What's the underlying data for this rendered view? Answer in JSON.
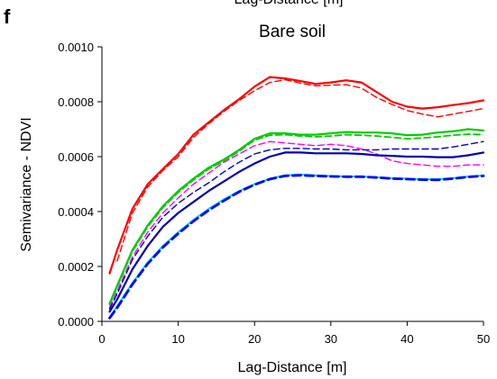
{
  "panel_label": "f",
  "top_cut_label": "Lag-Distance [m]",
  "chart_data": {
    "type": "line",
    "title": "Bare soil",
    "xlabel": "Lag-Distance [m]",
    "ylabel": "Semivariance - NDVI",
    "xlim": [
      0,
      50
    ],
    "ylim": [
      0,
      0.001
    ],
    "xticks": [
      0,
      10,
      20,
      30,
      40,
      50
    ],
    "yticks": [
      "0.0000",
      "0.0002",
      "0.0004",
      "0.0006",
      "0.0008",
      "0.0010"
    ],
    "grid": false,
    "legend": "none",
    "series": [
      {
        "color": "#ff0000",
        "style": "solid",
        "width": 2.2,
        "x": [
          1,
          2,
          4,
          6,
          8,
          10,
          12,
          14,
          16,
          18,
          20,
          22,
          24,
          26,
          28,
          30,
          32,
          34,
          36,
          38,
          40,
          42,
          44,
          46,
          48,
          50
        ],
        "y": [
          0.000175,
          0.00026,
          0.00041,
          0.0005,
          0.000555,
          0.00061,
          0.00068,
          0.000725,
          0.00077,
          0.00081,
          0.000855,
          0.00089,
          0.000885,
          0.000875,
          0.000865,
          0.00087,
          0.000878,
          0.00087,
          0.000835,
          0.0008,
          0.000782,
          0.000775,
          0.00078,
          0.000788,
          0.000795,
          0.000805
        ]
      },
      {
        "color": "#ff0000",
        "style": "dashed",
        "width": 1.4,
        "x": [
          2,
          4,
          6,
          8,
          10,
          12,
          14,
          16,
          18,
          20,
          22,
          24,
          26,
          28,
          30,
          32,
          34,
          36,
          38,
          40,
          42,
          44,
          46,
          48,
          50
        ],
        "y": [
          0.00022,
          0.000395,
          0.00049,
          0.00055,
          0.0006,
          0.00067,
          0.00072,
          0.000765,
          0.000805,
          0.00084,
          0.00087,
          0.00088,
          0.000868,
          0.000858,
          0.00086,
          0.000862,
          0.00085,
          0.000815,
          0.00079,
          0.000768,
          0.000755,
          0.000745,
          0.000755,
          0.000765,
          0.000775
        ]
      },
      {
        "color": "#00cc00",
        "style": "solid",
        "width": 2.2,
        "x": [
          1,
          2,
          4,
          6,
          8,
          10,
          12,
          14,
          16,
          18,
          20,
          22,
          24,
          26,
          28,
          30,
          32,
          34,
          36,
          38,
          40,
          42,
          44,
          46,
          48,
          50
        ],
        "y": [
          6.5e-05,
          0.00013,
          0.00026,
          0.00035,
          0.00042,
          0.000475,
          0.00052,
          0.00056,
          0.00059,
          0.000625,
          0.000665,
          0.000685,
          0.000685,
          0.00068,
          0.00068,
          0.000685,
          0.00069,
          0.000688,
          0.000688,
          0.000685,
          0.000678,
          0.00068,
          0.000688,
          0.000692,
          0.0007,
          0.000695
        ]
      },
      {
        "color": "#00cc00",
        "style": "dashed",
        "width": 1.8,
        "x": [
          1,
          2,
          4,
          6,
          8,
          10,
          12,
          14,
          16,
          18,
          20,
          22,
          24,
          26,
          28,
          30,
          32,
          34,
          36,
          38,
          40,
          42,
          44,
          46,
          48,
          50
        ],
        "y": [
          6e-05,
          0.000125,
          0.000255,
          0.000345,
          0.000415,
          0.00047,
          0.000515,
          0.000555,
          0.000585,
          0.00062,
          0.00066,
          0.000678,
          0.00068,
          0.000675,
          0.000672,
          0.000675,
          0.00068,
          0.000678,
          0.000675,
          0.00067,
          0.000665,
          0.000668,
          0.000672,
          0.000678,
          0.000682,
          0.00068
        ]
      },
      {
        "color": "#ff00ff",
        "style": "dashed",
        "width": 1.4,
        "x": [
          1,
          2,
          4,
          6,
          8,
          10,
          12,
          14,
          16,
          18,
          20,
          22,
          24,
          26,
          28,
          30,
          32,
          34,
          36,
          38,
          40,
          42,
          44,
          46,
          48,
          50
        ],
        "y": [
          5e-05,
          0.00011,
          0.000235,
          0.000325,
          0.000395,
          0.00045,
          0.0005,
          0.00054,
          0.00058,
          0.00061,
          0.00064,
          0.000655,
          0.00065,
          0.000645,
          0.00064,
          0.000645,
          0.00064,
          0.000628,
          0.00061,
          0.000585,
          0.000575,
          0.00057,
          0.000565,
          0.000565,
          0.00057,
          0.00057
        ]
      },
      {
        "color": "#0000cc",
        "style": "dashed",
        "width": 1.4,
        "x": [
          1,
          2,
          4,
          6,
          8,
          10,
          12,
          14,
          16,
          18,
          20,
          22,
          24,
          26,
          28,
          30,
          32,
          34,
          36,
          38,
          40,
          42,
          44,
          46,
          48,
          50
        ],
        "y": [
          4.5e-05,
          0.0001,
          0.000225,
          0.00031,
          0.00038,
          0.00043,
          0.00047,
          0.000505,
          0.000545,
          0.00058,
          0.00061,
          0.000625,
          0.00063,
          0.00063,
          0.000628,
          0.000628,
          0.000625,
          0.000625,
          0.000625,
          0.000628,
          0.000628,
          0.000628,
          0.000628,
          0.000635,
          0.000645,
          0.000655
        ]
      },
      {
        "color": "#0000aa",
        "style": "solid",
        "width": 2.2,
        "x": [
          1,
          2,
          4,
          6,
          8,
          10,
          12,
          14,
          16,
          18,
          20,
          22,
          24,
          26,
          28,
          30,
          32,
          34,
          36,
          38,
          40,
          42,
          44,
          46,
          48,
          50
        ],
        "y": [
          3.5e-05,
          8e-05,
          0.00019,
          0.000275,
          0.000345,
          0.000395,
          0.000435,
          0.000475,
          0.00051,
          0.000545,
          0.000575,
          0.0006,
          0.000615,
          0.000615,
          0.000612,
          0.000612,
          0.000612,
          0.00061,
          0.000605,
          0.000603,
          0.0006,
          0.0006,
          0.000598,
          0.000598,
          0.000605,
          0.000615
        ]
      },
      {
        "color": "#00dddd",
        "style": "solid",
        "width": 2.0,
        "x": [
          1,
          2,
          4,
          6,
          8,
          10,
          12,
          14,
          16,
          18,
          20,
          22,
          24,
          26,
          28,
          30,
          32,
          34,
          36,
          38,
          40,
          42,
          44,
          46,
          48,
          50
        ],
        "y": [
          1.5e-05,
          5.5e-05,
          0.00014,
          0.000215,
          0.000275,
          0.000325,
          0.00037,
          0.00041,
          0.000445,
          0.000475,
          0.0005,
          0.00052,
          0.000532,
          0.000535,
          0.000532,
          0.00053,
          0.000528,
          0.000528,
          0.000525,
          0.000522,
          0.00052,
          0.000518,
          0.000518,
          0.000522,
          0.000528,
          0.000532
        ]
      },
      {
        "color": "#0000ff",
        "style": "dashed",
        "width": 2.8,
        "x": [
          1,
          2,
          4,
          6,
          8,
          10,
          12,
          14,
          16,
          18,
          20,
          22,
          24,
          26,
          28,
          30,
          32,
          34,
          36,
          38,
          40,
          42,
          44,
          46,
          48,
          50
        ],
        "y": [
          1.2e-05,
          5e-05,
          0.000135,
          0.00021,
          0.00027,
          0.00032,
          0.000365,
          0.000405,
          0.00044,
          0.000472,
          0.000498,
          0.000518,
          0.00053,
          0.000532,
          0.00053,
          0.000528,
          0.000527,
          0.000527,
          0.000524,
          0.00052,
          0.000518,
          0.000516,
          0.000515,
          0.00052,
          0.000526,
          0.00053
        ]
      }
    ]
  }
}
